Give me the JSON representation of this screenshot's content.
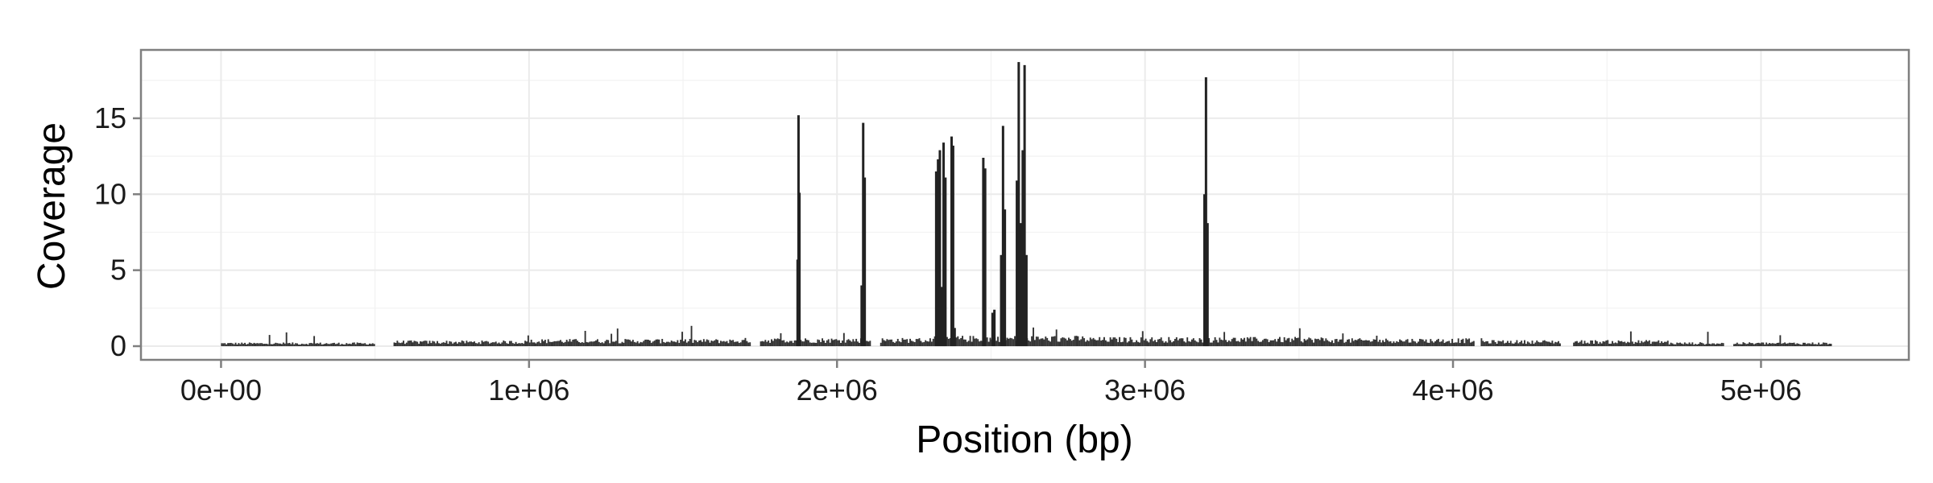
{
  "chart_data": {
    "type": "bar",
    "xlabel": "Position (bp)",
    "ylabel": "Coverage",
    "xlim": [
      -260000,
      5480000
    ],
    "ylim": [
      -0.9,
      19.5
    ],
    "x_ticks": [
      0,
      1000000,
      2000000,
      3000000,
      4000000,
      5000000
    ],
    "x_tick_labels": [
      "0e+00",
      "1e+06",
      "2e+06",
      "3e+06",
      "4e+06",
      "5e+06"
    ],
    "y_ticks": [
      0,
      5,
      10,
      15
    ],
    "y_tick_labels": [
      "0",
      "5",
      "10",
      "15"
    ],
    "grid": true,
    "background": "#ffffff",
    "grid_color": "#ebebeb",
    "bar_color": "#333333",
    "genome_length": 5230000,
    "baseline_bin_bp": 5000,
    "baseline_segments": [
      {
        "start": 0,
        "end": 560000,
        "level": 0.17
      },
      {
        "start": 560000,
        "end": 1000000,
        "level": 0.26
      },
      {
        "start": 1000000,
        "end": 1700000,
        "level": 0.33
      },
      {
        "start": 1700000,
        "end": 2300000,
        "level": 0.38
      },
      {
        "start": 2300000,
        "end": 2800000,
        "level": 0.48
      },
      {
        "start": 2800000,
        "end": 3600000,
        "level": 0.42
      },
      {
        "start": 3600000,
        "end": 4100000,
        "level": 0.36
      },
      {
        "start": 4100000,
        "end": 4700000,
        "level": 0.28
      },
      {
        "start": 4700000,
        "end": 5230000,
        "level": 0.18
      }
    ],
    "gaps": [
      [
        500000,
        560000
      ],
      [
        1720000,
        1750000
      ],
      [
        2110000,
        2140000
      ],
      [
        4070000,
        4090000
      ],
      [
        4350000,
        4390000
      ],
      [
        4880000,
        4910000
      ]
    ],
    "peaks": [
      {
        "x": 1872000,
        "y": 5.7
      },
      {
        "x": 1875000,
        "y": 15.2
      },
      {
        "x": 1878000,
        "y": 10.1
      },
      {
        "x": 2080000,
        "y": 4.0
      },
      {
        "x": 2085000,
        "y": 14.7
      },
      {
        "x": 2090000,
        "y": 11.1
      },
      {
        "x": 2322000,
        "y": 11.5
      },
      {
        "x": 2328000,
        "y": 12.3
      },
      {
        "x": 2334000,
        "y": 12.9
      },
      {
        "x": 2340000,
        "y": 3.9
      },
      {
        "x": 2346000,
        "y": 13.4
      },
      {
        "x": 2352000,
        "y": 11.1
      },
      {
        "x": 2372000,
        "y": 13.8
      },
      {
        "x": 2377000,
        "y": 13.2
      },
      {
        "x": 2382000,
        "y": 1.2
      },
      {
        "x": 2475000,
        "y": 12.4
      },
      {
        "x": 2481000,
        "y": 11.7
      },
      {
        "x": 2505000,
        "y": 2.2
      },
      {
        "x": 2511000,
        "y": 2.4
      },
      {
        "x": 2533000,
        "y": 6.0
      },
      {
        "x": 2539000,
        "y": 14.5
      },
      {
        "x": 2545000,
        "y": 9.0
      },
      {
        "x": 2584000,
        "y": 10.9
      },
      {
        "x": 2590000,
        "y": 18.7
      },
      {
        "x": 2596000,
        "y": 8.1
      },
      {
        "x": 2603000,
        "y": 12.9
      },
      {
        "x": 2609000,
        "y": 18.5
      },
      {
        "x": 2615000,
        "y": 6.0
      },
      {
        "x": 3193000,
        "y": 10.0
      },
      {
        "x": 3198000,
        "y": 17.7
      },
      {
        "x": 3203000,
        "y": 8.1
      }
    ]
  }
}
